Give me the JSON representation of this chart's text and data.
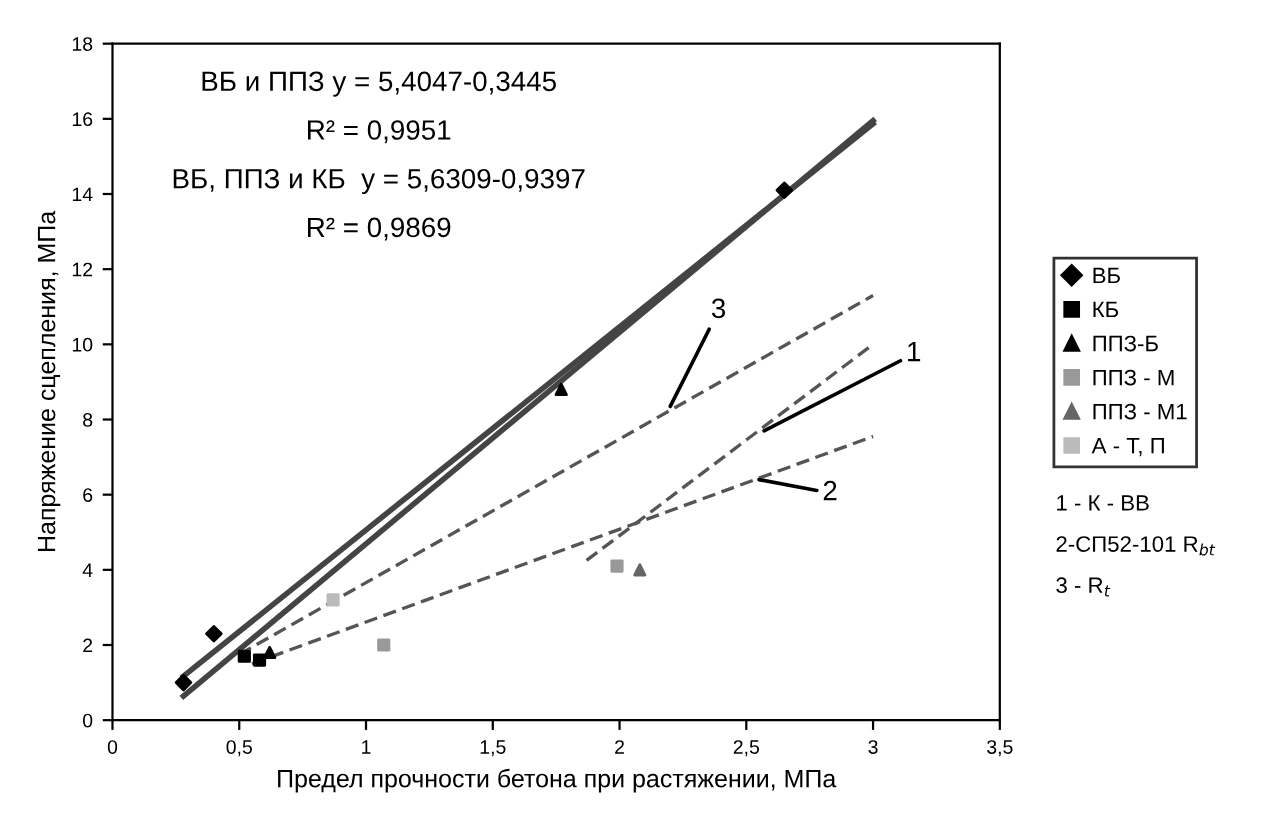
{
  "chart_data": {
    "type": "scatter",
    "xlabel": "Предел прочности бетона при растяжении, МПа",
    "ylabel": "Напряжение сцепления, МПа",
    "xlim": [
      0,
      3.5
    ],
    "ylim": [
      0,
      18
    ],
    "xticks": [
      0,
      {
        "value": 0.5,
        "label": "0,5"
      },
      1,
      {
        "value": 1.5,
        "label": "1,5"
      },
      2,
      {
        "value": 2.5,
        "label": "2,5"
      },
      3,
      {
        "value": 3.5,
        "label": "3,5"
      }
    ],
    "yticks": [
      0,
      2,
      4,
      6,
      8,
      10,
      12,
      14,
      16,
      18
    ],
    "grid": false,
    "legend": "right",
    "series": [
      {
        "name": "ВБ",
        "marker": "diamond",
        "color": "#000000",
        "x": [
          0.28,
          0.4,
          2.65
        ],
        "values": [
          1.0,
          2.3,
          14.1
        ]
      },
      {
        "name": "КБ",
        "marker": "square",
        "color": "#000000",
        "x": [
          0.52,
          0.58
        ],
        "values": [
          1.7,
          1.6
        ]
      },
      {
        "name": "ППЗ-Б",
        "marker": "triangle",
        "color": "#000000",
        "x": [
          1.77,
          0.62
        ],
        "values": [
          8.8,
          1.8
        ]
      },
      {
        "type": "line",
        "line_style": "dashed",
        "color": "#555555",
        "x": [
          1.87,
          3.0
        ],
        "values": [
          4.25,
          10.0
        ]
      },
      {
        "name": "ППЗ - М",
        "marker": "square",
        "color": "#999999",
        "x": [
          1.07,
          1.99
        ],
        "values": [
          2.0,
          4.1
        ]
      },
      {
        "name": "ППЗ - М1",
        "marker": "triangle",
        "color": "#666666",
        "x": [
          2.08
        ],
        "values": [
          4.0
        ]
      },
      {
        "name": "А - Т, П",
        "marker": "square",
        "color": "#bbbbbb",
        "x": [
          0.87
        ],
        "values": [
          3.2
        ]
      },
      {
        "type": "line",
        "line_style": "dashed",
        "color": "#555555",
        "x": [
          0.55,
          3.0
        ],
        "values": [
          1.5,
          7.55
        ]
      },
      {
        "type": "line",
        "line_style": "dashed",
        "color": "#555555",
        "x": [
          0.5,
          3.0
        ],
        "values": [
          1.75,
          11.3
        ]
      },
      {
        "type": "line",
        "line_style": "solid",
        "color": "#444444",
        "x": [
          0.28,
          3.0
        ],
        "values": [
          1.17,
          15.87
        ]
      },
      {
        "type": "line",
        "line_style": "solid",
        "color": "#444444",
        "x": [
          0.28,
          3.0
        ],
        "values": [
          0.64,
          15.95
        ]
      }
    ],
    "annotations": [
      "ВБ и ППЗ y = 5,4047-0,3445",
      "R² = 0,9951",
      "ВБ, ППЗ и КБ  y = 5,6309-0,9397",
      "R² = 0,9869",
      "1 - К - ВВ",
      "2-СП52-101 R$_{bt}$",
      "3 - R$_{t}$",
      {
        "text": "3",
        "x": 2.2,
        "y": 8.35
      },
      {
        "text": "1",
        "x": 2.57,
        "y": 7.7
      },
      {
        "text": "2",
        "x": 2.55,
        "y": 6.4
      }
    ]
  }
}
